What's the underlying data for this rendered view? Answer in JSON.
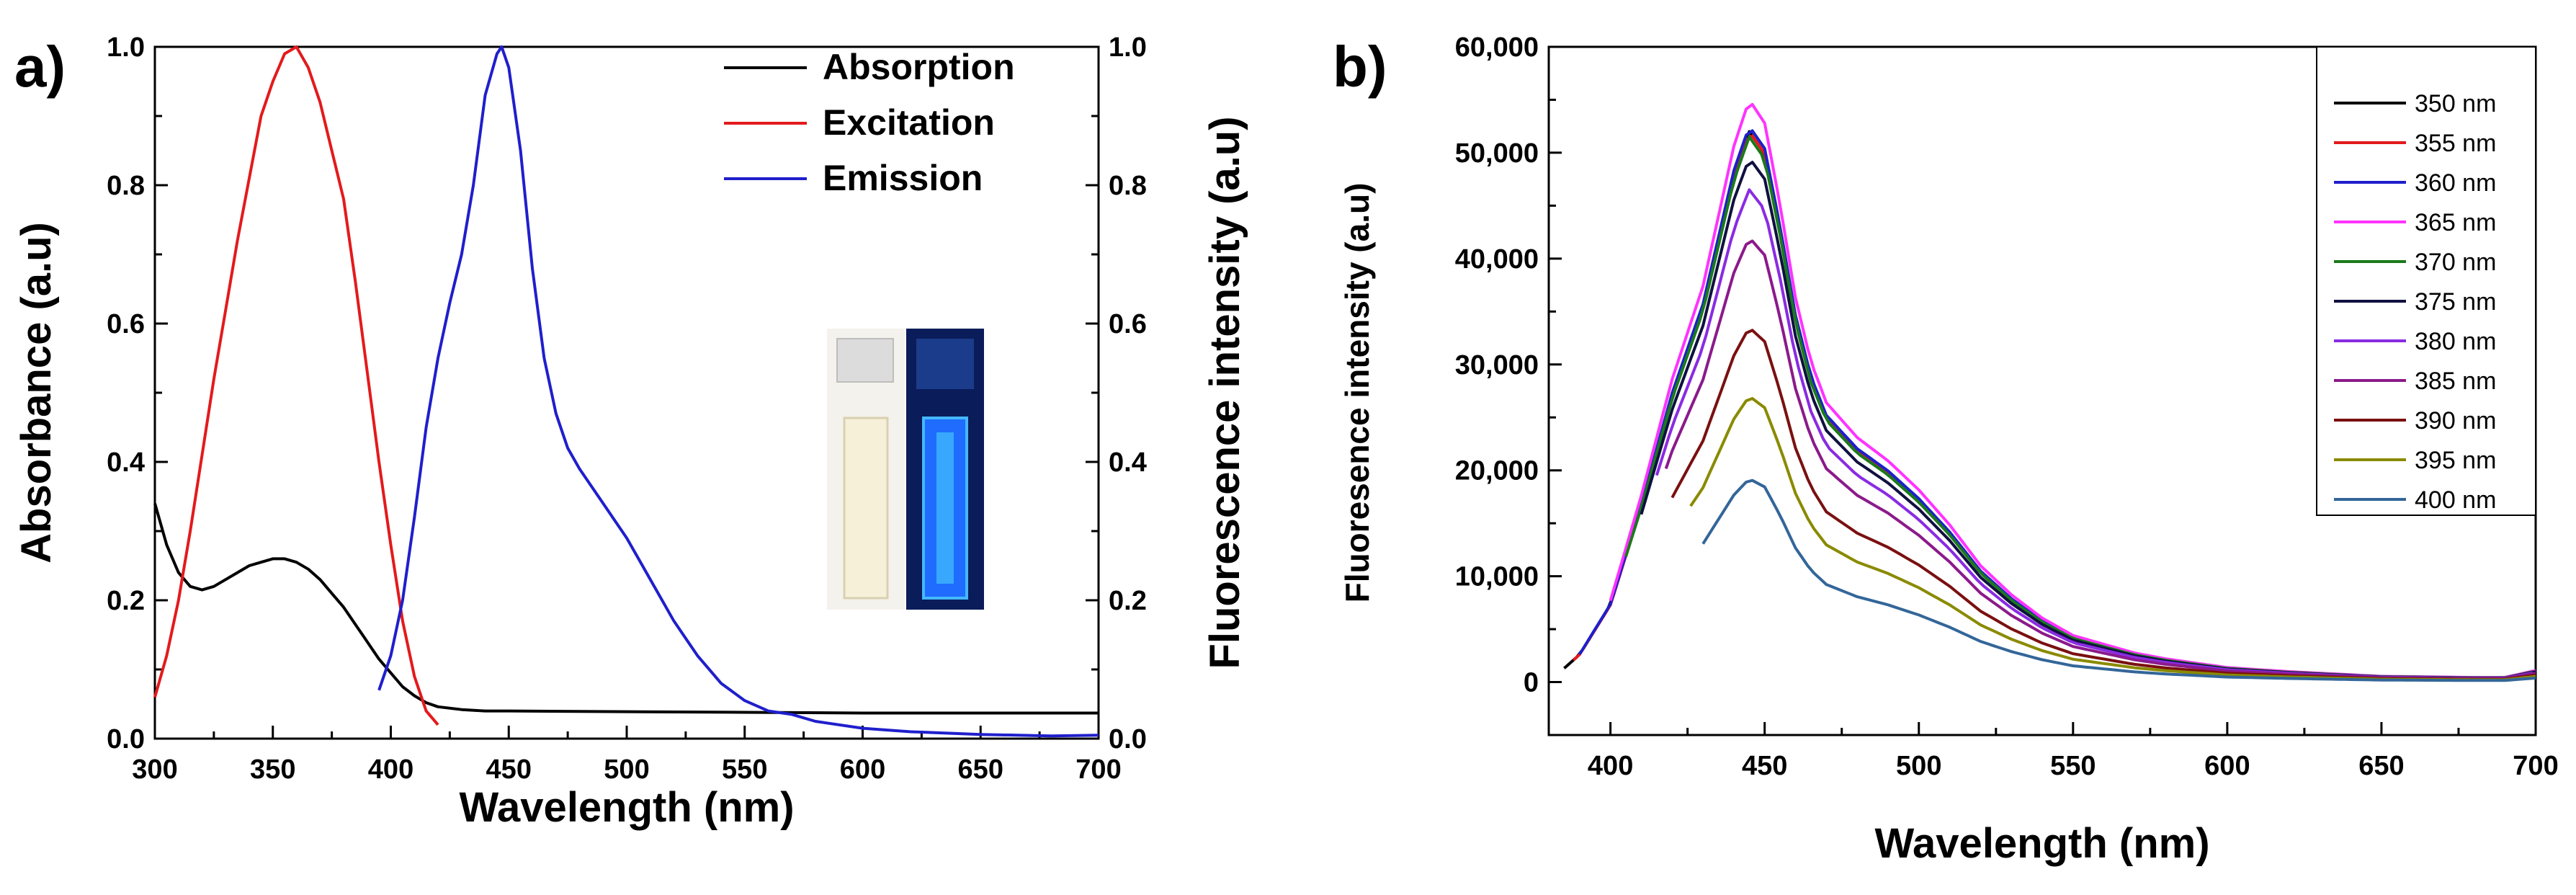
{
  "panels": [
    {
      "label": "a)",
      "type": "line",
      "xlabel": "Wavelength (nm)",
      "ylabel": "Absorbance (a.u)",
      "y2label": "Fluorescence intensity (a.u)",
      "xlim": [
        300,
        700
      ],
      "ylim": [
        0,
        1.0
      ],
      "y2lim": [
        0,
        1.0
      ],
      "xticks": [
        "300",
        "350",
        "400",
        "450",
        "500",
        "550",
        "600",
        "650",
        "700"
      ],
      "yticks": [
        "0.0",
        "0.2",
        "0.4",
        "0.6",
        "0.8",
        "1.0"
      ],
      "y2ticks": [
        "0.0",
        "0.2",
        "0.4",
        "0.6",
        "0.8",
        "1.0"
      ],
      "legend_position": "top-right",
      "inset": "photo of two cuvettes: clear under daylight, glowing blue under UV",
      "series": [
        {
          "name": "Absorption",
          "color": "#000000",
          "x": [
            300,
            305,
            310,
            315,
            320,
            325,
            330,
            335,
            340,
            345,
            350,
            355,
            360,
            365,
            370,
            375,
            380,
            385,
            390,
            395,
            400,
            405,
            410,
            415,
            420,
            430,
            440,
            450,
            500,
            550,
            600,
            650,
            700
          ],
          "y": [
            0.34,
            0.28,
            0.24,
            0.22,
            0.215,
            0.22,
            0.23,
            0.24,
            0.25,
            0.255,
            0.26,
            0.26,
            0.255,
            0.245,
            0.23,
            0.21,
            0.19,
            0.165,
            0.14,
            0.115,
            0.095,
            0.075,
            0.062,
            0.052,
            0.046,
            0.042,
            0.04,
            0.04,
            0.039,
            0.038,
            0.037,
            0.037,
            0.037
          ]
        },
        {
          "name": "Excitation",
          "color": "#e31a1c",
          "x": [
            300,
            305,
            310,
            315,
            320,
            325,
            330,
            335,
            340,
            345,
            350,
            355,
            360,
            365,
            370,
            375,
            380,
            385,
            390,
            395,
            400,
            405,
            410,
            415,
            420
          ],
          "y": [
            0.06,
            0.12,
            0.2,
            0.3,
            0.41,
            0.52,
            0.62,
            0.72,
            0.81,
            0.9,
            0.95,
            0.99,
            1.0,
            0.97,
            0.92,
            0.85,
            0.78,
            0.66,
            0.53,
            0.4,
            0.28,
            0.17,
            0.09,
            0.04,
            0.02
          ]
        },
        {
          "name": "Emission",
          "color": "#1f1fcc",
          "x": [
            395,
            400,
            405,
            410,
            415,
            420,
            425,
            430,
            435,
            440,
            445,
            447,
            450,
            455,
            460,
            465,
            470,
            475,
            480,
            490,
            500,
            510,
            520,
            530,
            540,
            550,
            560,
            570,
            580,
            600,
            620,
            650,
            680,
            700
          ],
          "y": [
            0.07,
            0.12,
            0.2,
            0.32,
            0.45,
            0.55,
            0.63,
            0.7,
            0.8,
            0.93,
            0.99,
            1.0,
            0.97,
            0.85,
            0.68,
            0.55,
            0.47,
            0.42,
            0.39,
            0.34,
            0.29,
            0.23,
            0.17,
            0.12,
            0.08,
            0.055,
            0.04,
            0.035,
            0.025,
            0.015,
            0.01,
            0.006,
            0.004,
            0.005
          ]
        }
      ]
    },
    {
      "label": "b)",
      "type": "line",
      "xlabel": "Wavelength (nm)",
      "ylabel": "Fluoresence intensity (a.u)",
      "xlim": [
        380,
        700
      ],
      "ylim": [
        -5000,
        60000
      ],
      "xticks": [
        "400",
        "450",
        "500",
        "550",
        "600",
        "650",
        "700"
      ],
      "yticks": [
        "0",
        "10,000",
        "20,000",
        "30,000",
        "40,000",
        "50,000",
        "60,000"
      ],
      "legend_position": "top-right",
      "series": [
        {
          "name": "350 nm",
          "color": "#000000",
          "start": 385,
          "peak": 52000
        },
        {
          "name": "355 nm",
          "color": "#e31a1c",
          "start": 388,
          "peak": 52000
        },
        {
          "name": "360 nm",
          "color": "#1f1fcc",
          "start": 390,
          "peak": 52500
        },
        {
          "name": "365 nm",
          "color": "#ff33ff",
          "start": 400,
          "peak": 55000
        },
        {
          "name": "370 nm",
          "color": "#1a7a1a",
          "start": 405,
          "peak": 51500
        },
        {
          "name": "375 nm",
          "color": "#101040",
          "start": 410,
          "peak": 49500
        },
        {
          "name": "380 nm",
          "color": "#8a2be2",
          "start": 415,
          "peak": 46500
        },
        {
          "name": "385 nm",
          "color": "#8b1a8b",
          "start": 418,
          "peak": 42000
        },
        {
          "name": "390 nm",
          "color": "#7a1010",
          "start": 420,
          "peak": 33500
        },
        {
          "name": "395 nm",
          "color": "#8a8a00",
          "start": 426,
          "peak": 27000
        },
        {
          "name": "400 nm",
          "color": "#336699",
          "start": 430,
          "peak": 19200
        }
      ]
    }
  ]
}
